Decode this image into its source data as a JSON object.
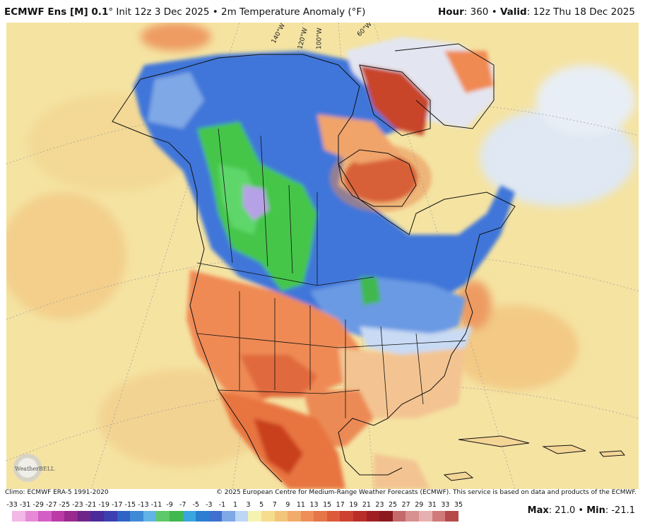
{
  "header": {
    "model": "ECMWF Ens [M] 0.1",
    "init_text": "° Init 12z 3 Dec 2025",
    "separator": "•",
    "field": "2m Temperature Anomaly (°F)",
    "hour_label": "Hour",
    "hour_value": ": 360",
    "valid_label": "Valid",
    "valid_value": ": 12z Thu 18 Dec 2025"
  },
  "map": {
    "longitude_labels": [
      "140°W",
      "120°W",
      "100°W",
      "60°W"
    ],
    "logo_text": "WeatherBELL",
    "colors": {
      "ocean_warm": "#f6e8a8",
      "ocean_cool": "#dde9f6",
      "warm_orange": "#f2a36b",
      "warm_red": "#c93a20",
      "cold_blue": "#3f73d8",
      "cold_light": "#a9c6ef",
      "cold_green": "#3ccf3a",
      "cold_purple": "#b9a2e6",
      "coastline": "#111111"
    }
  },
  "footer": {
    "climo": "Climo: ECMWF ERA-5 1991-2020",
    "copyright": "© 2025 European Centre for Medium-Range Weather Forecasts (ECMWF). This service is based on data and products of the ECMWF."
  },
  "colorbar": {
    "ticks": [
      "-33",
      "-31",
      "-29",
      "-27",
      "-25",
      "-23",
      "-21",
      "-19",
      "-17",
      "-15",
      "-13",
      "-11",
      "-9",
      "-7",
      "-5",
      "-3",
      "-1",
      "1",
      "3",
      "5",
      "7",
      "9",
      "11",
      "13",
      "15",
      "17",
      "19",
      "21",
      "23",
      "25",
      "27",
      "29",
      "31",
      "33",
      "35"
    ],
    "colors": [
      "#f2b8e6",
      "#e68ad6",
      "#d35fc6",
      "#bb3aa8",
      "#9a2a8e",
      "#6f248a",
      "#4b2a9a",
      "#3b3fb0",
      "#2f63c6",
      "#3f8ad6",
      "#62b3e6",
      "#5ec96a",
      "#3fb84e",
      "#3aa6e0",
      "#2c7fd0",
      "#3f6fcf",
      "#7fa8e6",
      "#bcd6f5",
      "#f6f2b0",
      "#f6dd8e",
      "#f4c47a",
      "#f1ab6a",
      "#ee8f58",
      "#e67548",
      "#dc5a3a",
      "#cc4130",
      "#b92e28",
      "#a01f22",
      "#8a1a1e",
      "#c46a6a",
      "#d89090",
      "#e7b0b0",
      "#d07a7a",
      "#b54a4a"
    ]
  },
  "stats": {
    "max_label": "Max",
    "max_value": ": 21.0",
    "sep": "•",
    "min_label": "Min",
    "min_value": ": -21.1"
  }
}
